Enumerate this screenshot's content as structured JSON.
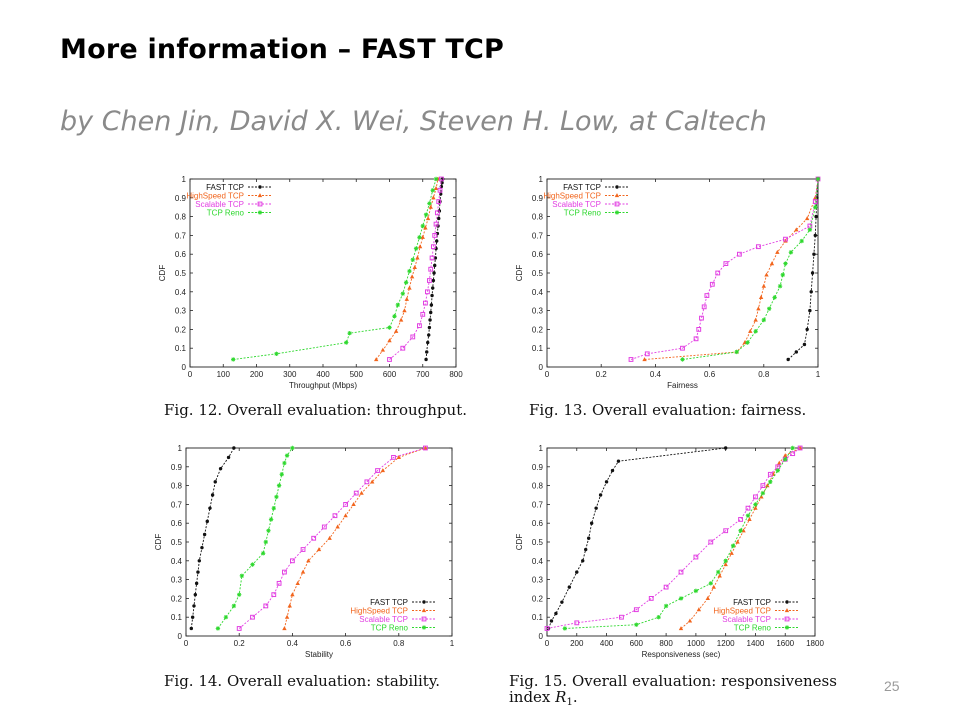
{
  "slide": {
    "title": "More information – FAST TCP",
    "subtitle": "by Chen Jin, David X. Wei, Steven H. Low, at Caltech",
    "page_number": "25"
  },
  "colors": {
    "FAST TCP": "#111111",
    "HighSpeed TCP": "#f2651d",
    "Scalable TCP": "#e23fe2",
    "TCP Reno": "#2ed82e"
  },
  "chart_data": [
    {
      "type": "line",
      "caption": "Fig. 12.    Overall evaluation: throughput.",
      "xlabel": "Throughput (Mbps)",
      "ylabel": "CDF",
      "xlim": [
        0,
        800
      ],
      "ylim": [
        0,
        1
      ],
      "xticks": [
        "0",
        "100",
        "200",
        "300",
        "400",
        "500",
        "600",
        "700",
        "800"
      ],
      "yticks": [
        "0",
        "0.1",
        "0.2",
        "0.3",
        "0.4",
        "0.5",
        "0.6",
        "0.7",
        "0.8",
        "0.9",
        "1"
      ],
      "legend_position": "top-left",
      "series": [
        {
          "name": "FAST TCP",
          "x": [
            710,
            712,
            715,
            718,
            720,
            722,
            724,
            726,
            728,
            730,
            732,
            734,
            736,
            738,
            740,
            742,
            744,
            746,
            748,
            750,
            752,
            754,
            756,
            758,
            760
          ],
          "y": [
            0.04,
            0.08,
            0.13,
            0.17,
            0.21,
            0.25,
            0.29,
            0.33,
            0.38,
            0.42,
            0.46,
            0.5,
            0.54,
            0.58,
            0.63,
            0.67,
            0.71,
            0.75,
            0.79,
            0.83,
            0.88,
            0.92,
            0.96,
            0.98,
            1.0
          ]
        },
        {
          "name": "HighSpeed TCP",
          "x": [
            560,
            580,
            600,
            620,
            635,
            645,
            652,
            660,
            668,
            676,
            684,
            692,
            700,
            708,
            716,
            724,
            732,
            740,
            746
          ],
          "y": [
            0.04,
            0.09,
            0.14,
            0.19,
            0.25,
            0.3,
            0.36,
            0.42,
            0.48,
            0.53,
            0.58,
            0.64,
            0.69,
            0.74,
            0.79,
            0.85,
            0.9,
            0.95,
            1.0
          ]
        },
        {
          "name": "Scalable TCP",
          "x": [
            600,
            640,
            670,
            690,
            700,
            708,
            714,
            720,
            724,
            728,
            732,
            736,
            740,
            744,
            748,
            752,
            756
          ],
          "y": [
            0.04,
            0.1,
            0.16,
            0.22,
            0.28,
            0.34,
            0.4,
            0.46,
            0.52,
            0.58,
            0.64,
            0.7,
            0.76,
            0.82,
            0.88,
            0.94,
            1.0
          ]
        },
        {
          "name": "TCP Reno",
          "x": [
            130,
            260,
            470,
            480,
            600,
            615,
            625,
            640,
            650,
            660,
            670,
            680,
            690,
            700,
            710,
            720,
            730,
            740
          ],
          "y": [
            0.04,
            0.07,
            0.13,
            0.18,
            0.21,
            0.27,
            0.33,
            0.39,
            0.45,
            0.51,
            0.57,
            0.63,
            0.69,
            0.75,
            0.81,
            0.87,
            0.94,
            1.0
          ]
        }
      ]
    },
    {
      "type": "line",
      "caption": "Fig. 13.    Overall evaluation: fairness.",
      "xlabel": "Fairness",
      "ylabel": "CDF",
      "xlim": [
        0,
        1
      ],
      "ylim": [
        0,
        1
      ],
      "xticks": [
        "0",
        "0.2",
        "0.4",
        "0.6",
        "0.8",
        "1"
      ],
      "yticks": [
        "0",
        "0.1",
        "0.2",
        "0.3",
        "0.4",
        "0.5",
        "0.6",
        "0.7",
        "0.8",
        "0.9",
        "1"
      ],
      "legend_position": "top-left",
      "series": [
        {
          "name": "FAST TCP",
          "x": [
            0.89,
            0.92,
            0.95,
            0.96,
            0.97,
            0.975,
            0.98,
            0.985,
            0.99,
            0.993,
            0.996,
            1.0
          ],
          "y": [
            0.04,
            0.08,
            0.12,
            0.2,
            0.3,
            0.4,
            0.5,
            0.6,
            0.7,
            0.8,
            0.9,
            1.0
          ]
        },
        {
          "name": "HighSpeed TCP",
          "x": [
            0.36,
            0.7,
            0.73,
            0.75,
            0.77,
            0.78,
            0.79,
            0.8,
            0.81,
            0.83,
            0.85,
            0.88,
            0.92,
            0.96,
            0.99,
            1.0
          ],
          "y": [
            0.04,
            0.08,
            0.13,
            0.19,
            0.25,
            0.31,
            0.37,
            0.43,
            0.49,
            0.55,
            0.61,
            0.67,
            0.73,
            0.79,
            0.9,
            1.0
          ]
        },
        {
          "name": "Scalable TCP",
          "x": [
            0.31,
            0.37,
            0.5,
            0.55,
            0.56,
            0.57,
            0.58,
            0.59,
            0.61,
            0.63,
            0.66,
            0.71,
            0.78,
            0.88,
            0.97,
            0.99,
            1.0
          ],
          "y": [
            0.04,
            0.07,
            0.1,
            0.15,
            0.2,
            0.26,
            0.32,
            0.38,
            0.44,
            0.5,
            0.55,
            0.6,
            0.64,
            0.68,
            0.75,
            0.88,
            1.0
          ]
        },
        {
          "name": "TCP Reno",
          "x": [
            0.5,
            0.7,
            0.74,
            0.77,
            0.8,
            0.82,
            0.84,
            0.86,
            0.87,
            0.88,
            0.9,
            0.94,
            0.97,
            0.99,
            1.0
          ],
          "y": [
            0.04,
            0.08,
            0.13,
            0.19,
            0.25,
            0.31,
            0.37,
            0.43,
            0.49,
            0.55,
            0.61,
            0.67,
            0.73,
            0.85,
            1.0
          ]
        }
      ]
    },
    {
      "type": "line",
      "caption": "Fig. 14.    Overall evaluation: stability.",
      "xlabel": "Stability",
      "ylabel": "CDF",
      "xlim": [
        0,
        1
      ],
      "ylim": [
        0,
        1
      ],
      "xticks": [
        "0",
        "0.2",
        "0.4",
        "0.6",
        "0.8",
        "1"
      ],
      "yticks": [
        "0",
        "0.1",
        "0.2",
        "0.3",
        "0.4",
        "0.5",
        "0.6",
        "0.7",
        "0.8",
        "0.9",
        "1"
      ],
      "legend_position": "bottom-right",
      "series": [
        {
          "name": "FAST TCP",
          "x": [
            0.02,
            0.025,
            0.03,
            0.035,
            0.04,
            0.045,
            0.05,
            0.06,
            0.07,
            0.08,
            0.09,
            0.1,
            0.11,
            0.13,
            0.16,
            0.18
          ],
          "y": [
            0.04,
            0.1,
            0.16,
            0.22,
            0.28,
            0.34,
            0.4,
            0.47,
            0.54,
            0.61,
            0.68,
            0.75,
            0.82,
            0.89,
            0.95,
            1.0
          ]
        },
        {
          "name": "HighSpeed TCP",
          "x": [
            0.37,
            0.38,
            0.39,
            0.4,
            0.42,
            0.44,
            0.46,
            0.5,
            0.54,
            0.57,
            0.6,
            0.63,
            0.66,
            0.7,
            0.74,
            0.8,
            0.9
          ],
          "y": [
            0.04,
            0.1,
            0.16,
            0.22,
            0.28,
            0.34,
            0.4,
            0.46,
            0.52,
            0.58,
            0.64,
            0.7,
            0.76,
            0.82,
            0.88,
            0.95,
            1.0
          ]
        },
        {
          "name": "Scalable TCP",
          "x": [
            0.2,
            0.25,
            0.3,
            0.33,
            0.35,
            0.37,
            0.4,
            0.44,
            0.48,
            0.52,
            0.56,
            0.6,
            0.64,
            0.68,
            0.72,
            0.78,
            0.9
          ],
          "y": [
            0.04,
            0.1,
            0.16,
            0.22,
            0.28,
            0.34,
            0.4,
            0.46,
            0.52,
            0.58,
            0.64,
            0.7,
            0.76,
            0.82,
            0.88,
            0.95,
            1.0
          ]
        },
        {
          "name": "TCP Reno",
          "x": [
            0.12,
            0.15,
            0.18,
            0.2,
            0.21,
            0.25,
            0.29,
            0.3,
            0.31,
            0.32,
            0.33,
            0.34,
            0.35,
            0.36,
            0.37,
            0.38,
            0.4
          ],
          "y": [
            0.04,
            0.1,
            0.16,
            0.22,
            0.32,
            0.38,
            0.44,
            0.5,
            0.56,
            0.62,
            0.68,
            0.74,
            0.8,
            0.86,
            0.92,
            0.96,
            1.0
          ]
        }
      ]
    },
    {
      "type": "line",
      "caption": "Fig. 15.    Overall evaluation: responsiveness",
      "caption2": "index",
      "caption_symbol": "R",
      "caption_subscript": "1",
      "xlabel": "Responsiveness (sec)",
      "ylabel": "CDF",
      "xlim": [
        0,
        1800
      ],
      "ylim": [
        0,
        1
      ],
      "xticks": [
        "0",
        "200",
        "400",
        "600",
        "800",
        "1000",
        "1200",
        "1400",
        "1600",
        "1800"
      ],
      "yticks": [
        "0",
        "0.1",
        "0.2",
        "0.3",
        "0.4",
        "0.5",
        "0.6",
        "0.7",
        "0.8",
        "0.9",
        "1"
      ],
      "legend_position": "bottom-right",
      "series": [
        {
          "name": "FAST TCP",
          "x": [
            10,
            30,
            60,
            100,
            150,
            200,
            240,
            260,
            280,
            300,
            330,
            360,
            400,
            440,
            480,
            1200
          ],
          "y": [
            0.04,
            0.08,
            0.12,
            0.18,
            0.26,
            0.34,
            0.4,
            0.46,
            0.52,
            0.6,
            0.68,
            0.75,
            0.82,
            0.88,
            0.93,
            1.0
          ]
        },
        {
          "name": "HighSpeed TCP",
          "x": [
            900,
            960,
            1020,
            1080,
            1120,
            1160,
            1200,
            1240,
            1280,
            1320,
            1360,
            1400,
            1440,
            1480,
            1520,
            1560,
            1600,
            1700
          ],
          "y": [
            0.04,
            0.08,
            0.14,
            0.2,
            0.26,
            0.32,
            0.38,
            0.44,
            0.5,
            0.56,
            0.62,
            0.68,
            0.74,
            0.8,
            0.86,
            0.92,
            0.96,
            1.0
          ]
        },
        {
          "name": "Scalable TCP",
          "x": [
            0,
            200,
            500,
            600,
            700,
            800,
            900,
            1000,
            1100,
            1200,
            1300,
            1350,
            1400,
            1450,
            1500,
            1550,
            1600,
            1650,
            1700
          ],
          "y": [
            0.04,
            0.07,
            0.1,
            0.14,
            0.2,
            0.26,
            0.34,
            0.42,
            0.5,
            0.56,
            0.62,
            0.68,
            0.74,
            0.8,
            0.86,
            0.9,
            0.94,
            0.97,
            1.0
          ]
        },
        {
          "name": "TCP Reno",
          "x": [
            120,
            600,
            750,
            800,
            900,
            1000,
            1100,
            1150,
            1200,
            1250,
            1300,
            1350,
            1400,
            1450,
            1500,
            1550,
            1600,
            1650
          ],
          "y": [
            0.04,
            0.06,
            0.1,
            0.16,
            0.2,
            0.24,
            0.28,
            0.34,
            0.4,
            0.48,
            0.56,
            0.64,
            0.7,
            0.76,
            0.82,
            0.88,
            0.94,
            1.0
          ]
        }
      ]
    }
  ]
}
